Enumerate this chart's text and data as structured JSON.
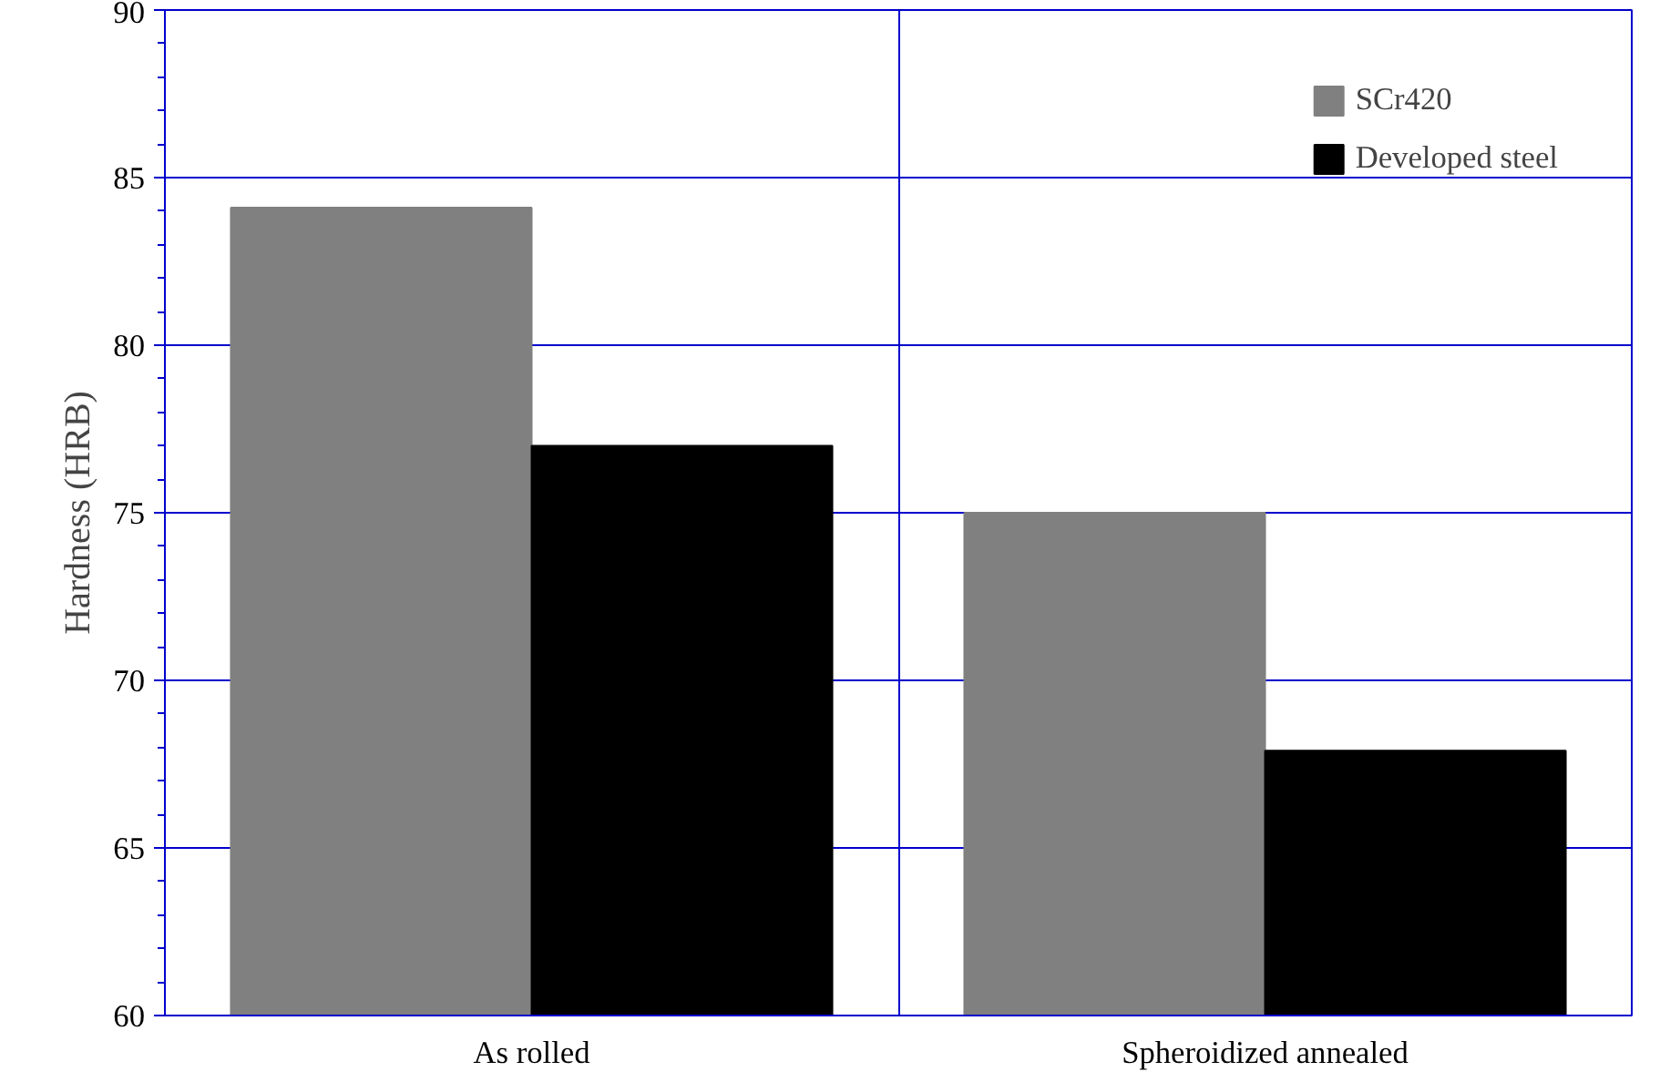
{
  "chart_data": {
    "type": "bar",
    "ylabel": "Hardness (HRB)",
    "categories": [
      "As rolled",
      "Spheroidized annealed"
    ],
    "series": [
      {
        "name": "SCr420",
        "color": "#808080",
        "values": [
          84.1,
          75.0
        ]
      },
      {
        "name": "Developed steel",
        "color": "#000000",
        "values": [
          77.0,
          67.9
        ]
      }
    ],
    "ylim": [
      60,
      90
    ],
    "yticks": [
      60,
      65,
      70,
      75,
      80,
      85,
      90
    ],
    "grid": true,
    "legend": "top right"
  }
}
